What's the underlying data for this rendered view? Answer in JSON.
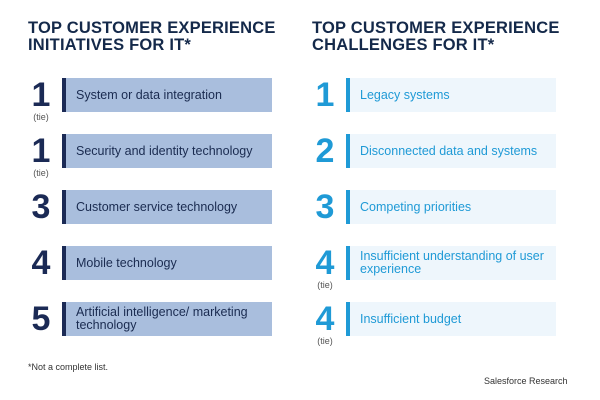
{
  "initiatives": {
    "title": "TOP CUSTOMER EXPERIENCE\nINITIATIVES FOR IT*",
    "items": [
      {
        "rank": "1",
        "tie": "(tie)",
        "label": "System or data integration"
      },
      {
        "rank": "1",
        "tie": "(tie)",
        "label": "Security and identity technology"
      },
      {
        "rank": "3",
        "tie": "",
        "label": "Customer service technology"
      },
      {
        "rank": "4",
        "tie": "",
        "label": "Mobile technology"
      },
      {
        "rank": "5",
        "tie": "",
        "label": "Artificial intelligence/ marketing technology"
      }
    ]
  },
  "challenges": {
    "title": "TOP CUSTOMER EXPERIENCE\nCHALLENGES FOR IT*",
    "items": [
      {
        "rank": "1",
        "tie": "",
        "label": "Legacy systems"
      },
      {
        "rank": "2",
        "tie": "",
        "label": "Disconnected data and systems"
      },
      {
        "rank": "3",
        "tie": "",
        "label": "Competing priorities"
      },
      {
        "rank": "4",
        "tie": "(tie)",
        "label": "Insufficient understanding of user experience"
      },
      {
        "rank": "4",
        "tie": "(tie)",
        "label": "Insufficient budget"
      }
    ]
  },
  "footnote": "*Not a complete list.",
  "source": "Salesforce Research",
  "colors": {
    "navy": "#1b2a55",
    "blue": "#1f9ad6",
    "left_box": "#a9bedd",
    "right_box": "#eef6fc"
  }
}
